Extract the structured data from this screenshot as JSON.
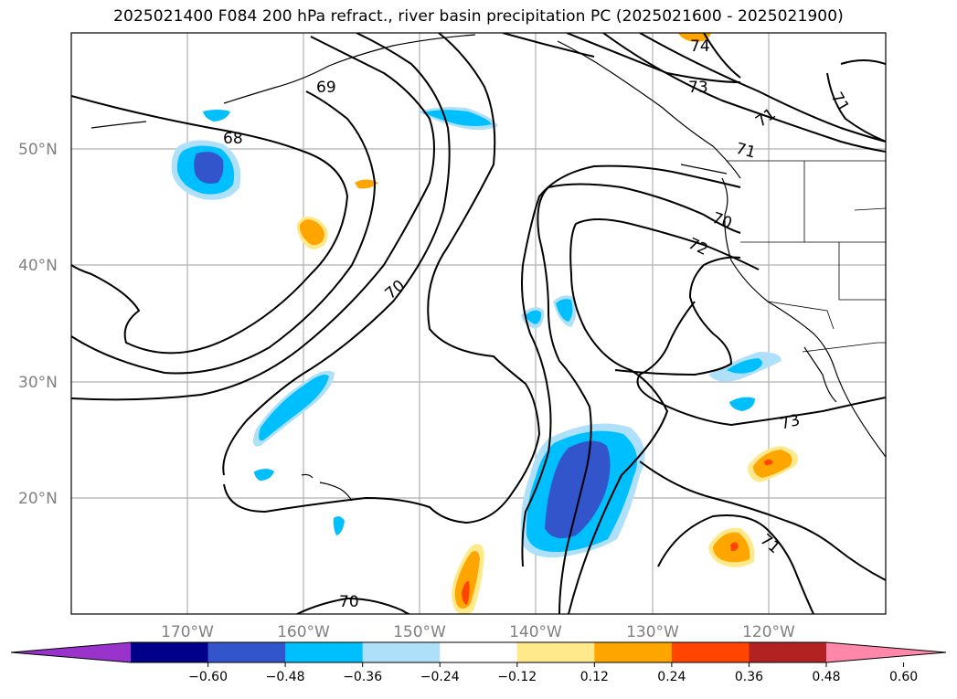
{
  "title": "2025021400 F084 200 hPa refract., river basin precipitation PC (2025021600 - 2025021900)",
  "map": {
    "lat_labels": [
      "50°N",
      "40°N",
      "30°N",
      "20°N"
    ],
    "lon_labels": [
      "170°W",
      "160°W",
      "150°W",
      "140°W",
      "130°W",
      "120°W"
    ],
    "contour_labels": [
      "74",
      "73",
      "69",
      "68",
      "71",
      "71",
      "71",
      "70",
      "72",
      "70",
      "73",
      "71",
      "70"
    ]
  },
  "colorbar": {
    "colors": [
      "#9a33cc",
      "#00008b",
      "#3355cc",
      "#00bfff",
      "#aee0fa",
      "#ffffff",
      "#ffe98a",
      "#ffa500",
      "#ff4500",
      "#b22222",
      "#ff88aa"
    ],
    "ticks": [
      "−0.60",
      "−0.48",
      "−0.36",
      "−0.24",
      "−0.12",
      "0.12",
      "0.24",
      "0.36",
      "0.48",
      "0.60"
    ]
  }
}
